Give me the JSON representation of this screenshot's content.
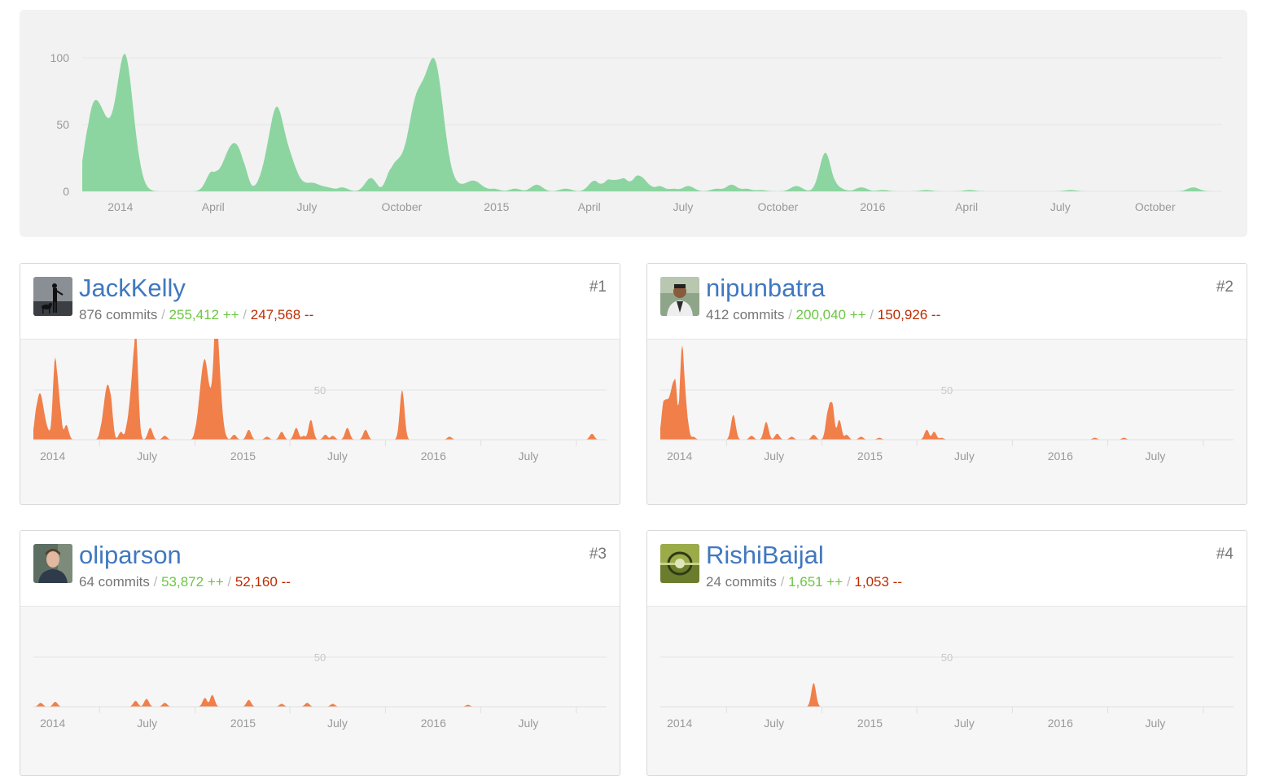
{
  "overview": {
    "y_ticks": [
      "100",
      "50",
      "0"
    ],
    "x_labels": [
      "2014",
      "April",
      "July",
      "October",
      "2015",
      "April",
      "July",
      "October",
      "2016",
      "April",
      "July",
      "October"
    ],
    "fill_color": "#8cd5a0",
    "chart_data": {
      "type": "area",
      "title": "",
      "ylim": [
        0,
        100
      ],
      "x": [
        "2013-12-02",
        "2013-12-09",
        "2013-12-16",
        "2013-12-23",
        "2013-12-30",
        "2014-01-06",
        "2014-01-13",
        "2014-01-20",
        "2014-02-03",
        "2014-03-24",
        "2014-03-31",
        "2014-04-07",
        "2014-04-14",
        "2014-04-21",
        "2014-04-28",
        "2014-05-05",
        "2014-05-19",
        "2014-05-26",
        "2014-06-02",
        "2014-06-09",
        "2014-06-16",
        "2014-06-23",
        "2014-06-30",
        "2014-07-07",
        "2014-07-14",
        "2014-07-21",
        "2014-08-04",
        "2014-08-18",
        "2014-09-01",
        "2014-09-22",
        "2014-09-29",
        "2014-10-06",
        "2014-10-13",
        "2014-10-20",
        "2014-10-27",
        "2014-11-03",
        "2014-11-10",
        "2014-11-17",
        "2014-11-24",
        "2014-12-01",
        "2014-12-08",
        "2014-12-15",
        "2014-12-29",
        "2015-01-19",
        "2015-02-09",
        "2015-03-09",
        "2015-04-06",
        "2015-04-20",
        "2015-04-27",
        "2015-05-04",
        "2015-05-18",
        "2015-05-25",
        "2015-06-08",
        "2015-06-22",
        "2015-07-06",
        "2015-08-03",
        "2015-08-17",
        "2015-08-31",
        "2015-09-14",
        "2015-10-19",
        "2015-11-16",
        "2015-11-23",
        "2015-11-30",
        "2015-12-21",
        "2016-01-11",
        "2016-02-22",
        "2016-04-04",
        "2016-07-11",
        "2016-11-07"
      ],
      "y": [
        50,
        50,
        40,
        28,
        55,
        93,
        40,
        8,
        0,
        0,
        15,
        5,
        22,
        27,
        25,
        0,
        10,
        28,
        60,
        25,
        20,
        5,
        3,
        6,
        2,
        3,
        3,
        0,
        10,
        18,
        15,
        20,
        55,
        52,
        62,
        82,
        40,
        8,
        3,
        3,
        7,
        5,
        2,
        2,
        5,
        2,
        8,
        9,
        3,
        10,
        12,
        6,
        4,
        2,
        4,
        2,
        5,
        2,
        1,
        4,
        29,
        3,
        2,
        3,
        1,
        1,
        1,
        1,
        3
      ]
    }
  },
  "mini_axis": {
    "x_labels": [
      "2014",
      "July",
      "2015",
      "July",
      "2016",
      "July"
    ],
    "grid_label": "50"
  },
  "contributors": [
    {
      "name": "JackKelly",
      "rank": "#1",
      "commits": "876 commits",
      "additions": "255,412 ++",
      "deletions": "247,568 --",
      "avatar": "dog-silhouette-avatar",
      "chart_data": {
        "type": "area",
        "ylim": [
          0,
          100
        ],
        "x": [
          "2013-12-02",
          "2013-12-09",
          "2013-12-16",
          "2013-12-23",
          "2014-01-06",
          "2014-01-13",
          "2014-01-27",
          "2014-03-10",
          "2014-04-07",
          "2014-04-14",
          "2014-04-21",
          "2014-05-12",
          "2014-05-26",
          "2014-06-02",
          "2014-06-09",
          "2014-07-07",
          "2014-08-04",
          "2014-10-06",
          "2014-10-13",
          "2014-10-20",
          "2014-10-27",
          "2014-11-03",
          "2014-11-10",
          "2014-11-17",
          "2014-11-24",
          "2014-12-15",
          "2015-01-12",
          "2015-02-16",
          "2015-03-16",
          "2015-04-13",
          "2015-04-27",
          "2015-05-11",
          "2015-06-08",
          "2015-06-22",
          "2015-07-20",
          "2015-08-24",
          "2015-11-02",
          "2016-02-01",
          "2016-10-31"
        ],
        "y": [
          35,
          45,
          20,
          8,
          83,
          40,
          15,
          0,
          20,
          50,
          48,
          8,
          20,
          50,
          112,
          12,
          4,
          20,
          55,
          78,
          45,
          30,
          135,
          60,
          10,
          5,
          10,
          3,
          8,
          12,
          4,
          20,
          5,
          4,
          12,
          10,
          50,
          3,
          6
        ]
      }
    },
    {
      "name": "nipunbatra",
      "rank": "#2",
      "commits": "412 commits",
      "additions": "200,040 ++",
      "deletions": "150,926 --",
      "avatar": "person-avatar",
      "chart_data": {
        "type": "area",
        "ylim": [
          0,
          100
        ],
        "x": [
          "2013-12-02",
          "2013-12-09",
          "2013-12-16",
          "2013-12-23",
          "2014-01-06",
          "2014-01-13",
          "2014-01-27",
          "2014-04-07",
          "2014-04-14",
          "2014-05-19",
          "2014-06-16",
          "2014-07-07",
          "2014-08-04",
          "2014-09-15",
          "2014-10-13",
          "2014-10-20",
          "2014-11-03",
          "2014-11-17",
          "2014-12-15",
          "2015-01-19",
          "2015-04-20",
          "2015-05-04",
          "2015-05-18",
          "2016-03-07",
          "2016-05-02"
        ],
        "y": [
          40,
          30,
          40,
          62,
          95,
          30,
          3,
          0,
          25,
          4,
          18,
          6,
          3,
          5,
          30,
          38,
          20,
          5,
          3,
          2,
          10,
          8,
          2,
          2,
          2
        ]
      }
    },
    {
      "name": "oliparson",
      "rank": "#3",
      "commits": "64 commits",
      "additions": "53,872 ++",
      "deletions": "52,160 --",
      "avatar": "man-portrait-avatar",
      "chart_data": {
        "type": "area",
        "ylim": [
          0,
          100
        ],
        "x": [
          "2013-12-09",
          "2014-01-06",
          "2014-06-09",
          "2014-06-30",
          "2014-08-04",
          "2014-10-20",
          "2014-11-03",
          "2015-01-12",
          "2015-03-16",
          "2015-05-04",
          "2015-06-22",
          "2016-03-07"
        ],
        "y": [
          4,
          5,
          6,
          8,
          4,
          9,
          12,
          7,
          3,
          4,
          3,
          2
        ]
      }
    },
    {
      "name": "RishiBaijal",
      "rank": "#4",
      "commits": "24 commits",
      "additions": "1,651 ++",
      "deletions": "1,053 --",
      "avatar": "landscape-avatar",
      "chart_data": {
        "type": "area",
        "ylim": [
          0,
          100
        ],
        "x": [
          "2014-09-15"
        ],
        "y": [
          24
        ]
      }
    }
  ],
  "colors": {
    "link": "#4078c0",
    "additions": "#6cc644",
    "deletions": "#bd2c00",
    "overview_fill": "#8cd5a0",
    "contributor_fill": "#f17f49"
  }
}
